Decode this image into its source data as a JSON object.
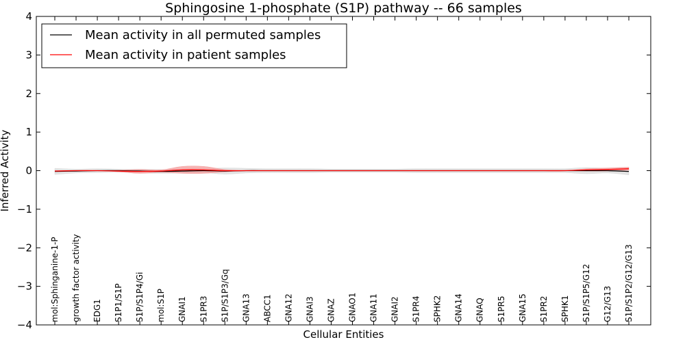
{
  "chart_data": {
    "type": "line",
    "title": "Sphingosine 1-phosphate (S1P) pathway -- 66 samples",
    "xlabel": "Cellular Entities",
    "ylabel": "Inferred Activity",
    "ylim": [
      -4,
      4
    ],
    "yticks": [
      -4,
      -3,
      -2,
      -1,
      0,
      1,
      2,
      3,
      4
    ],
    "ytick_labels": [
      "−4",
      "−3",
      "−2",
      "−1",
      "0",
      "1",
      "2",
      "3",
      "4"
    ],
    "grid": false,
    "legend_position": "top-left",
    "categories": [
      "mol:Sphinganine-1-P",
      "growth factor activity",
      "EDG1",
      "S1P1/S1P",
      "S1P/S1P4/Gi",
      "mol:S1P",
      "GNAI1",
      "S1PR3",
      "S1P/S1P3/Gq",
      "GNA13",
      "ABCC1",
      "GNA12",
      "GNAI3",
      "GNAZ",
      "GNAO1",
      "GNA11",
      "GNAI2",
      "S1PR4",
      "SPHK2",
      "GNA14",
      "GNAQ",
      "S1PR5",
      "GNA15",
      "S1PR2",
      "SPHK1",
      "S1P/S1P5/G12",
      "G12/G13",
      "S1P/S1P2/G12/G13"
    ],
    "series": [
      {
        "name": "Mean activity in all permuted samples",
        "color": "#000000",
        "band_color": "#d9d9d9",
        "values": [
          -0.02,
          -0.01,
          0,
          0,
          -0.01,
          -0.02,
          -0.01,
          0,
          -0.01,
          0,
          0,
          0,
          0,
          0,
          0,
          0,
          0,
          0,
          0,
          0,
          0,
          0,
          0,
          0,
          0,
          0,
          0,
          -0.02
        ],
        "band_halfwidth": [
          0.08,
          0.05,
          0.05,
          0.04,
          0.05,
          0.05,
          0.05,
          0.05,
          0.08,
          0.06,
          0.05,
          0.05,
          0.05,
          0.04,
          0.04,
          0.04,
          0.04,
          0.05,
          0.05,
          0.05,
          0.05,
          0.05,
          0.05,
          0.05,
          0.05,
          0.08,
          0.06,
          0.09
        ]
      },
      {
        "name": "Mean activity in patient samples",
        "color": "#ff0000",
        "band_color": "#f4a0a0",
        "values": [
          -0.01,
          0,
          0,
          -0.01,
          -0.02,
          -0.01,
          0.02,
          0.02,
          0,
          0,
          0,
          0,
          0,
          0,
          0,
          0,
          0,
          0,
          0,
          0,
          0,
          0,
          0,
          0,
          0,
          0.02,
          0.03,
          0.05
        ],
        "band_halfwidth": [
          0,
          0,
          0,
          0.02,
          0.05,
          0.03,
          0.09,
          0.09,
          0.03,
          0,
          0,
          0,
          0,
          0,
          0,
          0,
          0,
          0,
          0,
          0,
          0,
          0,
          0,
          0,
          0,
          0.03,
          0.04,
          0.04
        ]
      }
    ]
  }
}
